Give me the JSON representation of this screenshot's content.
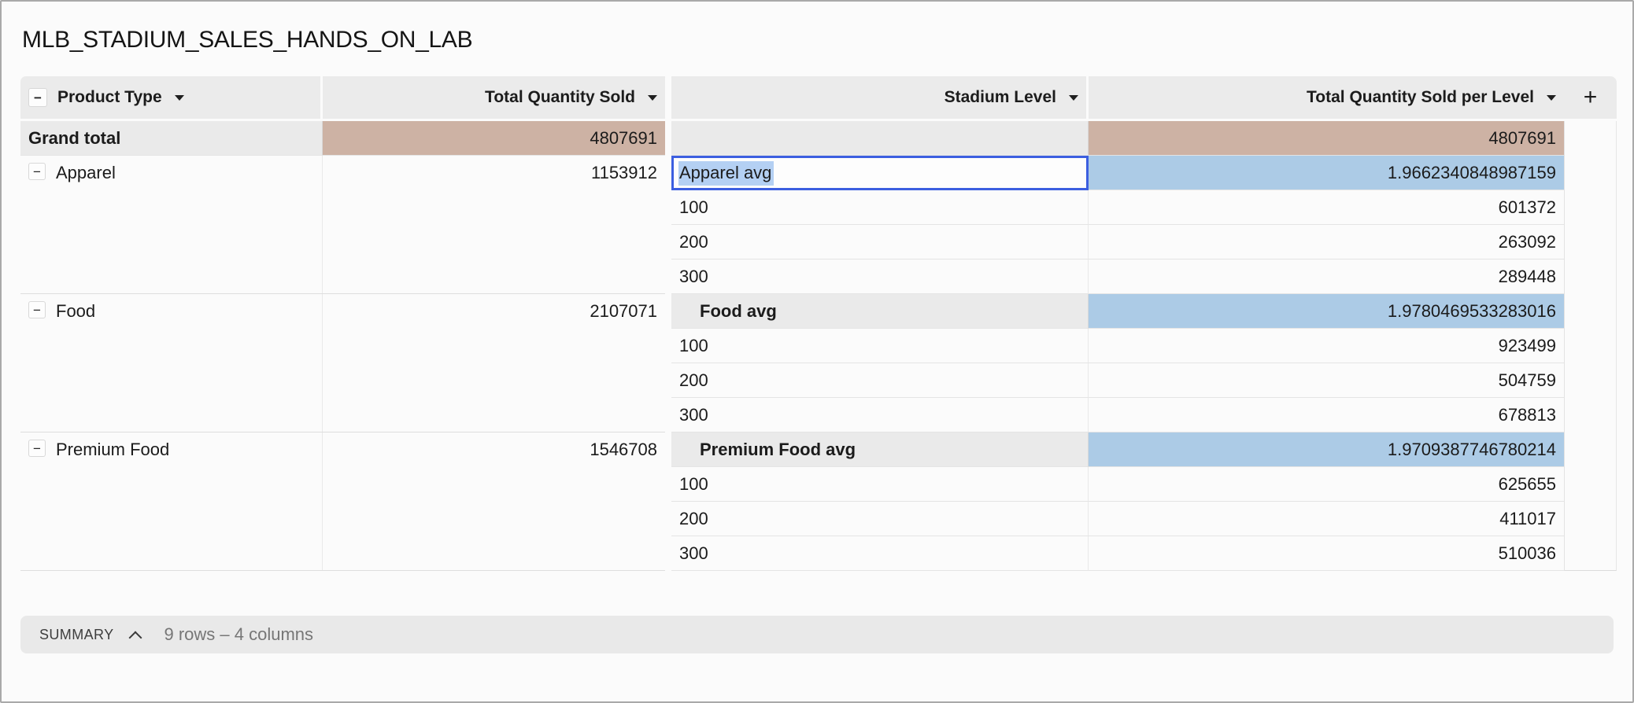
{
  "page": {
    "title": "MLB_STADIUM_SALES_HANDS_ON_LAB"
  },
  "icons": {
    "collapse": "−",
    "add_column": "+"
  },
  "colors": {
    "grand_total_fill": "#cdb2a4",
    "avg_fill": "#accbe6",
    "selected_group_fill": "#dfe2f7",
    "edit_border": "#3c5fe0",
    "text_selection": "#b4d0f3",
    "header_fill": "#ebebeb"
  },
  "table": {
    "columns": [
      {
        "label": "Product Type"
      },
      {
        "label": "Total Quantity Sold"
      },
      {
        "label": "Stadium Level"
      },
      {
        "label": "Total Quantity Sold per Level"
      }
    ],
    "grand_total": {
      "label": "Grand total",
      "total_quantity_sold": "4807691",
      "total_quantity_sold_per_level": "4807691"
    },
    "groups": [
      {
        "name": "Apparel",
        "total": "1153912",
        "avg_label": "Apparel avg",
        "avg_value": "1.9662340848987159",
        "levels": [
          {
            "level": "100",
            "value": "601372"
          },
          {
            "level": "200",
            "value": "263092"
          },
          {
            "level": "300",
            "value": "289448"
          }
        ]
      },
      {
        "name": "Food",
        "total": "2107071",
        "avg_label": "Food avg",
        "avg_value": "1.9780469533283016",
        "levels": [
          {
            "level": "100",
            "value": "923499"
          },
          {
            "level": "200",
            "value": "504759"
          },
          {
            "level": "300",
            "value": "678813"
          }
        ]
      },
      {
        "name": "Premium Food",
        "total": "1546708",
        "avg_label": "Premium Food avg",
        "avg_value": "1.9709387746780214",
        "levels": [
          {
            "level": "100",
            "value": "625655"
          },
          {
            "level": "200",
            "value": "411017"
          },
          {
            "level": "300",
            "value": "510036"
          }
        ]
      }
    ]
  },
  "summary": {
    "label": "SUMMARY",
    "detail": "9 rows – 4 columns"
  }
}
